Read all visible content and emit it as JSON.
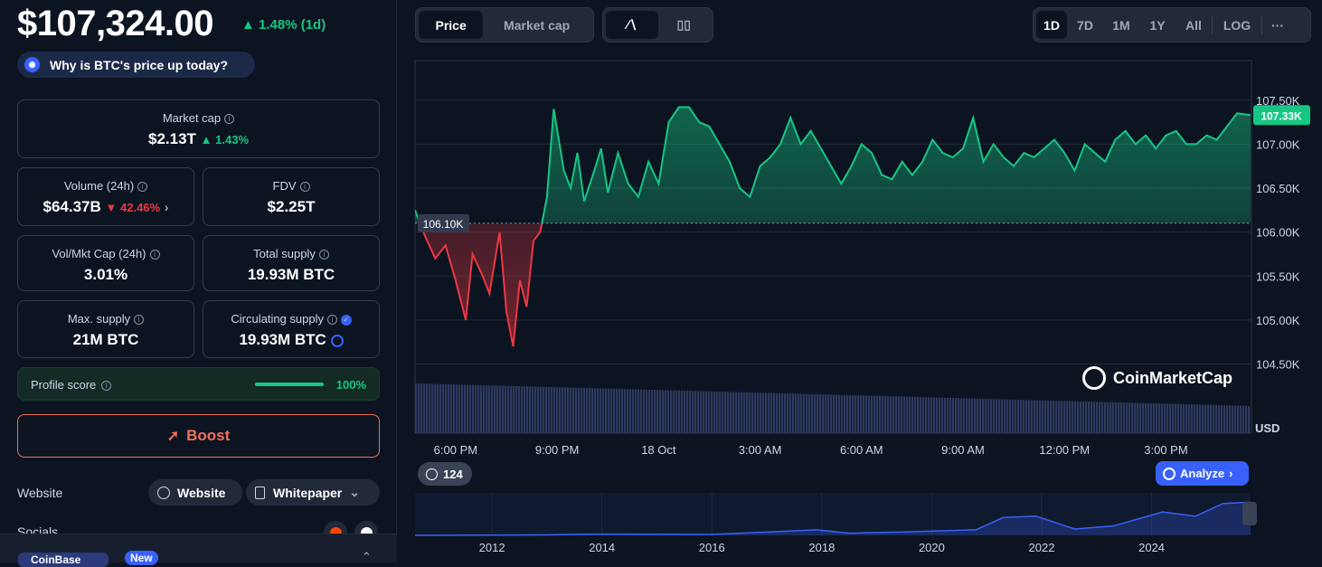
{
  "header": {
    "price": "$107,324.00",
    "change": "1.48% (1d)",
    "why_label": "Why is BTC's price up today?"
  },
  "stats": {
    "market_cap": {
      "label": "Market cap",
      "value": "$2.13T",
      "change": "1.43%"
    },
    "volume": {
      "label": "Volume (24h)",
      "value": "$64.37B",
      "change": "42.46%"
    },
    "fdv": {
      "label": "FDV",
      "value": "$2.25T"
    },
    "vol_mkt_cap": {
      "label": "Vol/Mkt Cap (24h)",
      "value": "3.01%"
    },
    "total_supply": {
      "label": "Total supply",
      "value": "19.93M BTC"
    },
    "max_supply": {
      "label": "Max. supply",
      "value": "21M BTC"
    },
    "circulating_supply": {
      "label": "Circulating supply",
      "value": "19.93M BTC"
    }
  },
  "profile": {
    "label": "Profile score",
    "value": "100%",
    "fraction": 1.0
  },
  "boost_label": "Boost",
  "links": {
    "website_label": "Website",
    "website_button": "Website",
    "whitepaper_button": "Whitepaper",
    "socials_label": "Socials",
    "coinbase_label": "CoinBase",
    "new_badge": "New"
  },
  "toolbar": {
    "type_options": [
      "Price",
      "Market cap"
    ],
    "active_type": "Price",
    "ranges": [
      "1D",
      "7D",
      "1M",
      "1Y",
      "All"
    ],
    "active_range": "1D",
    "log_label": "LOG",
    "more_label": "···"
  },
  "colors": {
    "up": "#16c784",
    "down": "#ea3943",
    "accent": "#3861fb",
    "boost": "#f2705a"
  },
  "chart_data": {
    "type": "area",
    "title": "",
    "unit": "USD",
    "baseline": 106100,
    "baseline_label": "106.10K",
    "current_label": "107.33K",
    "ylim": [
      104300,
      107950
    ],
    "y_ticks": [
      "107.50K",
      "107.00K",
      "106.50K",
      "106.00K",
      "105.50K",
      "105.00K",
      "104.50K"
    ],
    "y_tick_values": [
      107500,
      107000,
      106500,
      106000,
      105500,
      105000,
      104500
    ],
    "x_ticks": [
      "6:00 PM",
      "9:00 PM",
      "18 Oct",
      "3:00 AM",
      "6:00 AM",
      "9:00 AM",
      "12:00 PM",
      "3:00 PM"
    ],
    "x_tick_hours": [
      1.2,
      4.2,
      7.2,
      10.2,
      13.2,
      16.2,
      19.2,
      22.2
    ],
    "x_range_hours": [
      0,
      24.7
    ],
    "series": [
      {
        "x": [
          0,
          0.3,
          0.6,
          0.9,
          1.2,
          1.5,
          1.7,
          2.0,
          2.2,
          2.5,
          2.7,
          2.9,
          3.1,
          3.3,
          3.5,
          3.7,
          3.9,
          4.1,
          4.4,
          4.6,
          4.8,
          5.0,
          5.3,
          5.5,
          5.7,
          6.0,
          6.3,
          6.6,
          6.9,
          7.2,
          7.5,
          7.8,
          8.1,
          8.4,
          8.7,
          9.0,
          9.3,
          9.6,
          9.9,
          10.2,
          10.5,
          10.8,
          11.1,
          11.4,
          11.7,
          12.0,
          12.3,
          12.6,
          12.9,
          13.2,
          13.5,
          13.8,
          14.1,
          14.4,
          14.7,
          15.0,
          15.3,
          15.6,
          15.9,
          16.2,
          16.5,
          16.8,
          17.1,
          17.4,
          17.7,
          18.0,
          18.3,
          18.6,
          18.9,
          19.2,
          19.5,
          19.8,
          20.1,
          20.4,
          20.7,
          21.0,
          21.3,
          21.6,
          21.9,
          22.2,
          22.5,
          22.8,
          23.1,
          23.4,
          23.7,
          24.0,
          24.3,
          24.7
        ],
        "y": [
          106250,
          105950,
          105700,
          105850,
          105450,
          105000,
          105750,
          105500,
          105300,
          106000,
          105100,
          104700,
          105450,
          105150,
          105900,
          106000,
          106400,
          107400,
          106700,
          106500,
          106900,
          106350,
          106700,
          106950,
          106450,
          106900,
          106550,
          106400,
          106800,
          106550,
          107250,
          107420,
          107420,
          107250,
          107200,
          107000,
          106800,
          106500,
          106400,
          106750,
          106850,
          107000,
          107300,
          107000,
          107150,
          106950,
          106750,
          106550,
          106750,
          107000,
          106900,
          106650,
          106600,
          106800,
          106650,
          106800,
          107050,
          106900,
          106850,
          106950,
          107300,
          106800,
          107000,
          106850,
          106750,
          106900,
          106850,
          106950,
          107050,
          106900,
          106700,
          107000,
          106900,
          106800,
          107050,
          107150,
          107000,
          107100,
          106950,
          107100,
          107150,
          107000,
          107000,
          107100,
          107050,
          107200,
          107350,
          107330
        ]
      }
    ],
    "history": {
      "x_ticks": [
        "2012",
        "2014",
        "2016",
        "2018",
        "2020",
        "2022",
        "2024"
      ],
      "x_tick_years": [
        2012,
        2014,
        2016,
        2018,
        2020,
        2022,
        2024
      ],
      "x_range_years": [
        2010.6,
        2025.8
      ],
      "years": [
        2010.6,
        2013,
        2013.9,
        2016,
        2017.9,
        2018.5,
        2019.5,
        2020.8,
        2021.3,
        2021.9,
        2022.6,
        2023.3,
        2024.2,
        2024.8,
        2025.3,
        2025.8
      ],
      "values": [
        0,
        0.01,
        0.03,
        0.02,
        0.13,
        0.05,
        0.08,
        0.13,
        0.42,
        0.45,
        0.15,
        0.22,
        0.55,
        0.45,
        0.75,
        0.78
      ]
    }
  },
  "chart_ui": {
    "watermark": "CoinMarketCap",
    "event_count": "124",
    "analyze_label": "Analyze"
  }
}
